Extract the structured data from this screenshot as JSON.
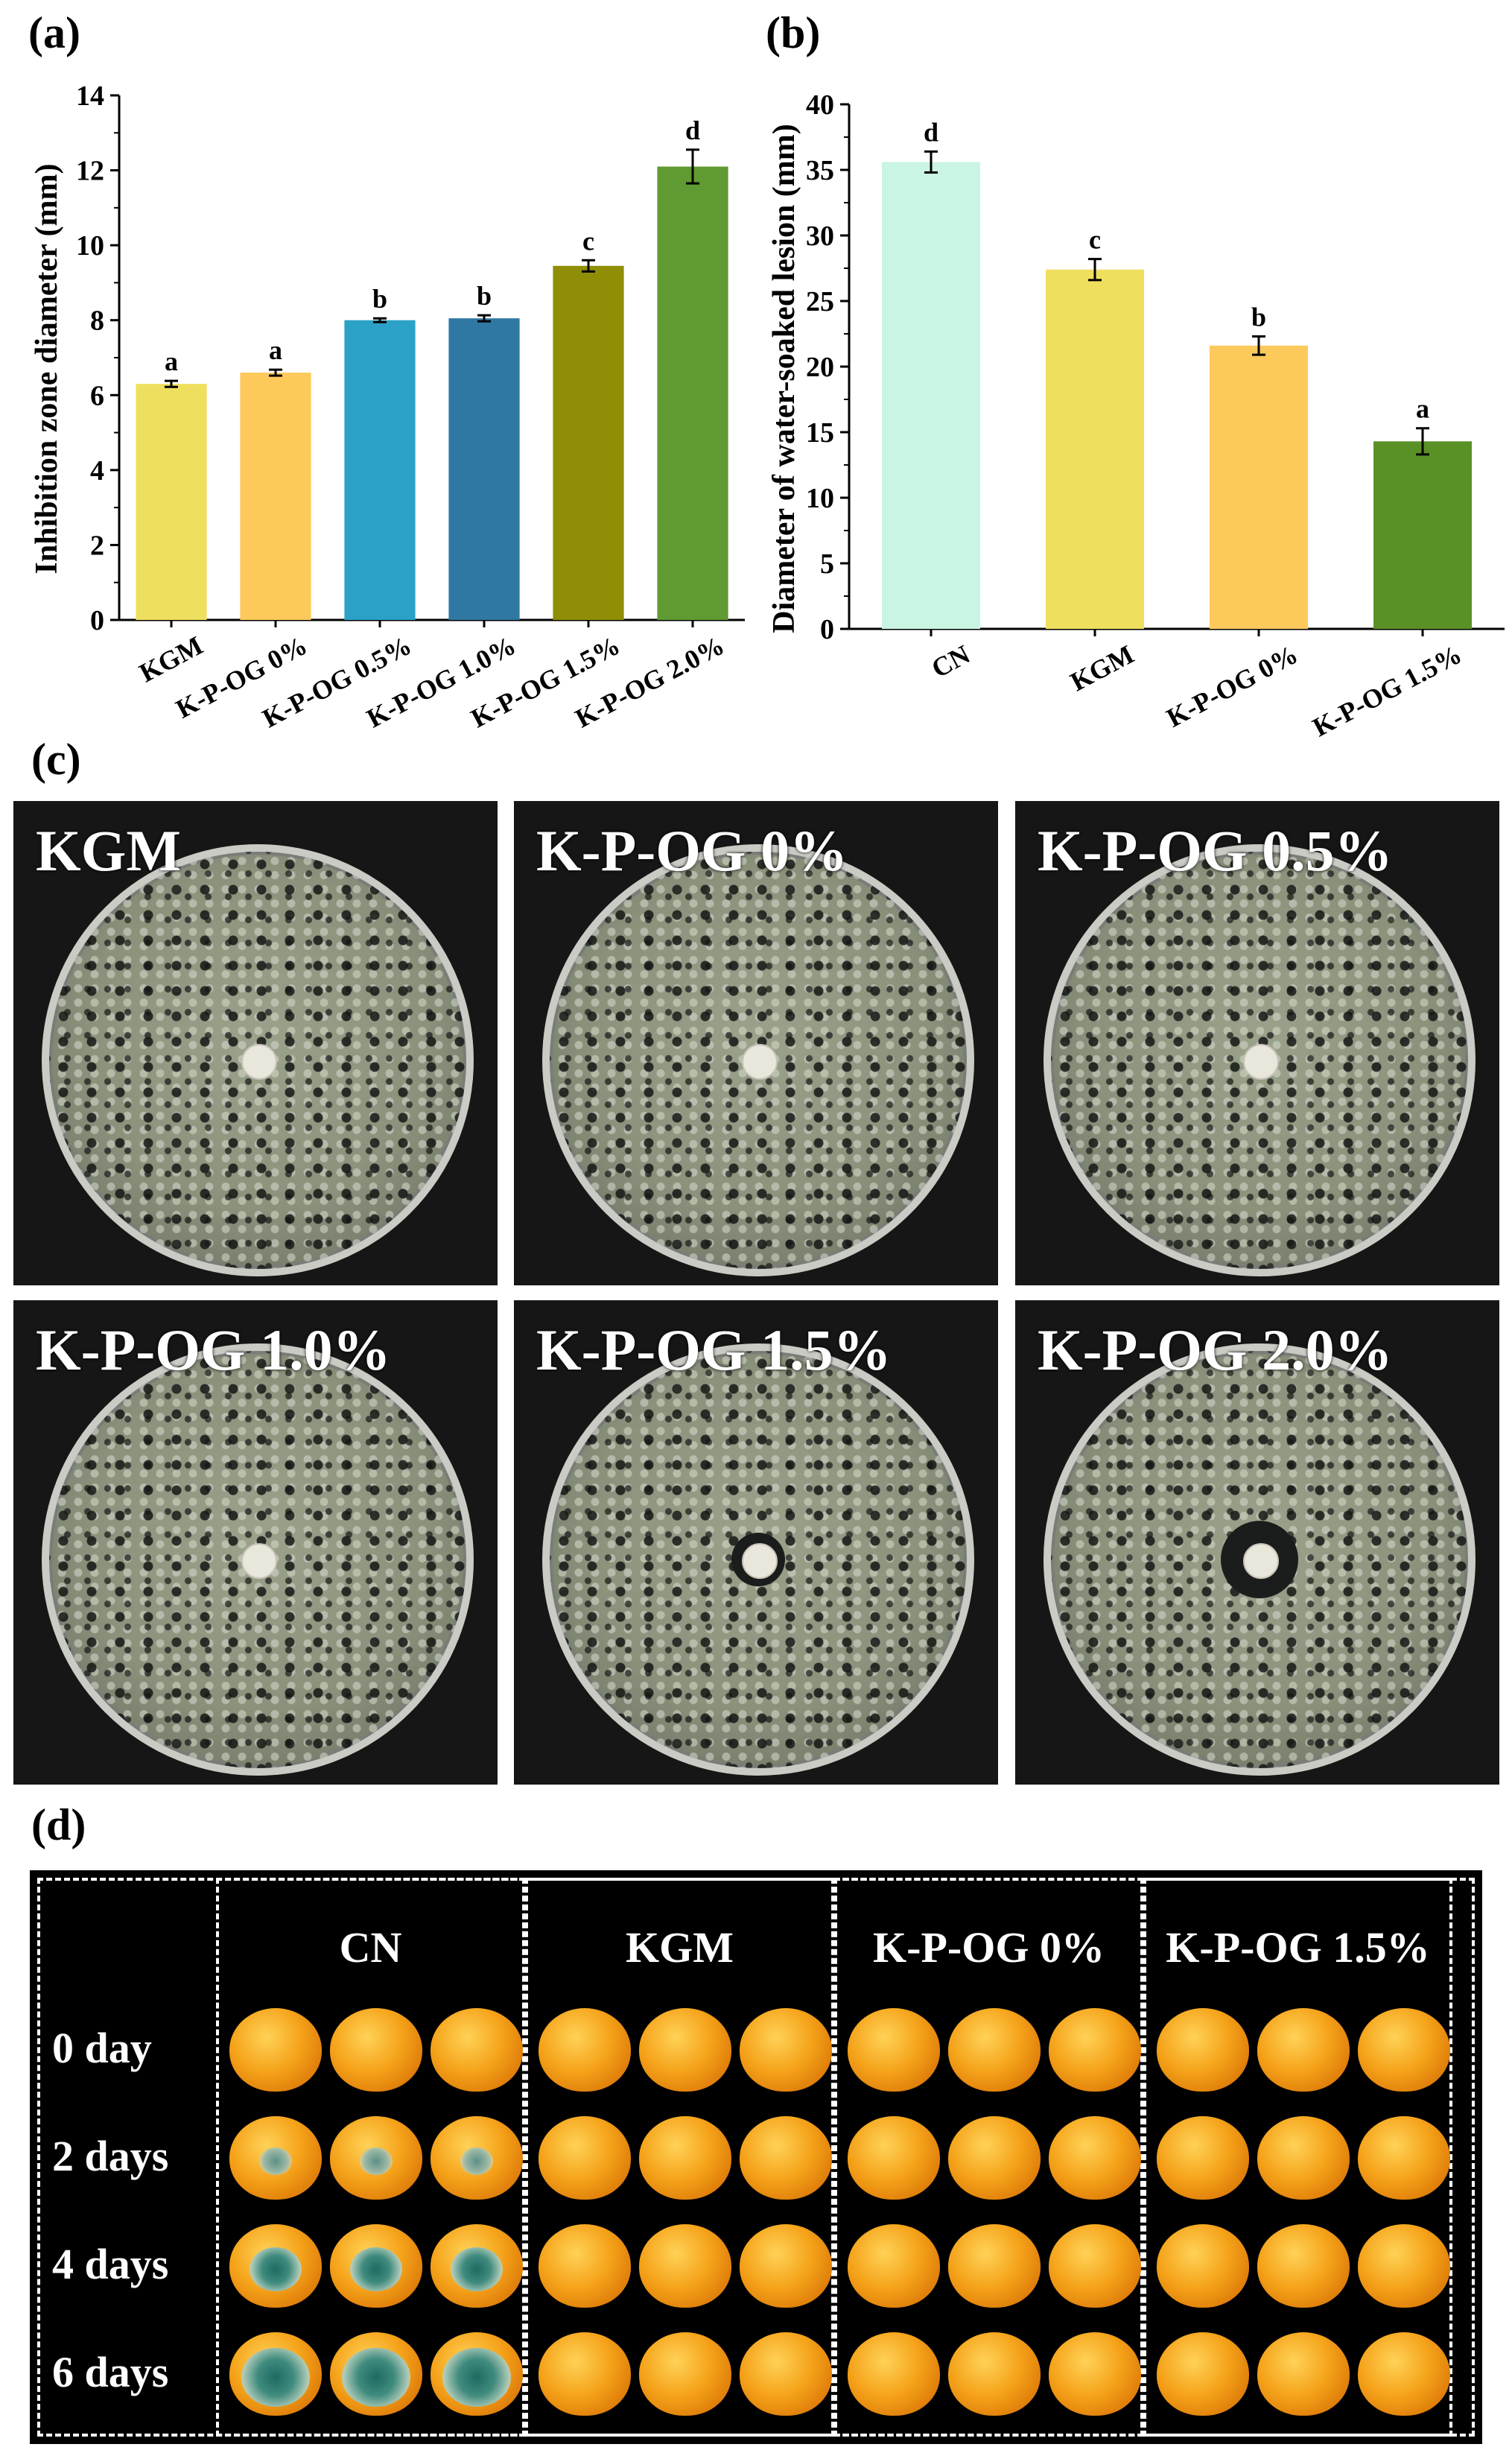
{
  "panels": {
    "a": "(a)",
    "b": "(b)",
    "c": "(c)",
    "d": "(d)"
  },
  "chart_data": [
    {
      "type": "bar",
      "panel": "(a)",
      "ylabel": "Inhibition zone diameter (mm)",
      "xlabel": "",
      "ylim": [
        0,
        14
      ],
      "yticks": [
        0,
        2,
        4,
        6,
        8,
        10,
        12,
        14
      ],
      "categories": [
        "KGM",
        "K-P-OG 0%",
        "K-P-OG 0.5%",
        "K-P-OG 1.0%",
        "K-P-OG 1.5%",
        "K-P-OG 2.0%"
      ],
      "values": [
        6.3,
        6.6,
        8.0,
        8.05,
        9.45,
        12.1
      ],
      "errors": [
        0.08,
        0.08,
        0.05,
        0.08,
        0.15,
        0.45
      ],
      "letters": [
        "a",
        "a",
        "b",
        "b",
        "c",
        "d"
      ],
      "colors": [
        "#efdf5e",
        "#fdc95b",
        "#2ba1c7",
        "#2f78a3",
        "#8f8e06",
        "#5f9a32"
      ]
    },
    {
      "type": "bar",
      "panel": "(b)",
      "ylabel": "Diameter of water-soaked lesion (mm)",
      "xlabel": "",
      "ylim": [
        0,
        40
      ],
      "yticks": [
        0,
        5,
        10,
        15,
        20,
        25,
        30,
        35,
        40
      ],
      "categories": [
        "CN",
        "KGM",
        "K-P-OG 0%",
        "K-P-OG 1.5%"
      ],
      "values": [
        35.6,
        27.4,
        21.6,
        14.3
      ],
      "errors": [
        0.8,
        0.8,
        0.7,
        1.0
      ],
      "letters": [
        "d",
        "c",
        "b",
        "a"
      ],
      "colors": [
        "#c9f5e2",
        "#efdf5e",
        "#fdc95b",
        "#5a9127"
      ]
    }
  ],
  "plates": [
    {
      "label": "KGM",
      "halo": 0
    },
    {
      "label": "K-P-OG 0%",
      "halo": 0
    },
    {
      "label": "K-P-OG 0.5%",
      "halo": 0
    },
    {
      "label": "K-P-OG 1.0%",
      "halo": 0
    },
    {
      "label": "K-P-OG 1.5%",
      "halo": 1
    },
    {
      "label": "K-P-OG 2.0%",
      "halo": 2
    }
  ],
  "fruit_grid": {
    "columns": [
      "CN",
      "KGM",
      "K-P-OG 0%",
      "K-P-OG 1.5%"
    ],
    "rows": [
      "0 day",
      "2 days",
      "4 days",
      "6 days"
    ],
    "mold_levels_cn": [
      0,
      1,
      2,
      3
    ]
  }
}
